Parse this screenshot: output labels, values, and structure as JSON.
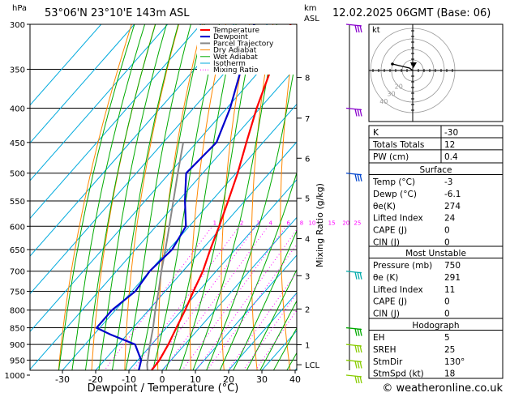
{
  "header": {
    "hpa_label": "hPa",
    "location": "53°06'N  23°10'E  143m  ASL",
    "km_label": "km",
    "asl_label": "ASL",
    "datetime": "12.02.2025  06GMT  (Base: 06)"
  },
  "chart_data": {
    "type": "skew-t",
    "xlabel": "Dewpoint / Temperature (°C)",
    "ylabel_right": "Mixing Ratio (g/kg)",
    "x_ticks": [
      -30,
      -20,
      -10,
      0,
      10,
      20,
      30,
      40
    ],
    "pressure_ticks": [
      300,
      350,
      400,
      450,
      500,
      550,
      600,
      650,
      700,
      750,
      800,
      850,
      900,
      950,
      1000
    ],
    "km_ticks": [
      {
        "label": "8",
        "p": 360
      },
      {
        "label": "7",
        "p": 414
      },
      {
        "label": "6",
        "p": 475
      },
      {
        "label": "5",
        "p": 545
      },
      {
        "label": "4",
        "p": 626
      },
      {
        "label": "3",
        "p": 711
      },
      {
        "label": "2",
        "p": 797
      },
      {
        "label": "1",
        "p": 901
      },
      {
        "label": "LCL",
        "p": 965
      }
    ],
    "mixing_ratio_labels": [
      "1",
      "2",
      "3",
      "4",
      "6",
      "8",
      "10",
      "15",
      "20",
      "25"
    ],
    "mixing_ratio_values": [
      1,
      2,
      3,
      4,
      6,
      8,
      10,
      15,
      20,
      25
    ],
    "legend": [
      "Temperature",
      "Dewpoint",
      "Parcel Trajectory",
      "Dry Adiabat",
      "Wet Adiabat",
      "Isotherm",
      "Mixing Ratio"
    ],
    "legend_colors": [
      "#ff0000",
      "#0000cc",
      "#888888",
      "#ff8800",
      "#00aa00",
      "#00aadd",
      "#ff00ff"
    ],
    "temperature": [
      {
        "p": 1000,
        "t": -3
      },
      {
        "p": 950,
        "t": -3.5
      },
      {
        "p": 900,
        "t": -5
      },
      {
        "p": 850,
        "t": -7
      },
      {
        "p": 800,
        "t": -9
      },
      {
        "p": 750,
        "t": -11.5
      },
      {
        "p": 700,
        "t": -14
      },
      {
        "p": 650,
        "t": -17.5
      },
      {
        "p": 600,
        "t": -21
      },
      {
        "p": 550,
        "t": -25
      },
      {
        "p": 500,
        "t": -29.5
      },
      {
        "p": 450,
        "t": -35
      },
      {
        "p": 400,
        "t": -41
      },
      {
        "p": 350,
        "t": -47
      },
      {
        "p": 300,
        "t": -53
      }
    ],
    "dewpoint": [
      {
        "p": 1000,
        "t": -6.1
      },
      {
        "p": 950,
        "t": -9
      },
      {
        "p": 900,
        "t": -15
      },
      {
        "p": 870,
        "t": -25
      },
      {
        "p": 850,
        "t": -31
      },
      {
        "p": 800,
        "t": -31
      },
      {
        "p": 750,
        "t": -29
      },
      {
        "p": 700,
        "t": -30
      },
      {
        "p": 650,
        "t": -29
      },
      {
        "p": 600,
        "t": -31
      },
      {
        "p": 550,
        "t": -38
      },
      {
        "p": 500,
        "t": -45
      },
      {
        "p": 450,
        "t": -44
      },
      {
        "p": 400,
        "t": -49
      },
      {
        "p": 350,
        "t": -56
      },
      {
        "p": 300,
        "t": -64
      }
    ],
    "parcel": [
      {
        "p": 1000,
        "t": -3
      },
      {
        "p": 965,
        "t": -6
      },
      {
        "p": 900,
        "t": -10.5
      },
      {
        "p": 850,
        "t": -14
      },
      {
        "p": 800,
        "t": -18
      },
      {
        "p": 750,
        "t": -22
      },
      {
        "p": 700,
        "t": -26.5
      },
      {
        "p": 650,
        "t": -31
      },
      {
        "p": 600,
        "t": -36
      },
      {
        "p": 550,
        "t": -41.5
      },
      {
        "p": 500,
        "t": -47.5
      },
      {
        "p": 450,
        "t": -54
      }
    ]
  },
  "indices": {
    "k": {
      "label": "K",
      "value": "-30"
    },
    "tt": {
      "label": "Totals Totals",
      "value": "12"
    },
    "pw": {
      "label": "PW (cm)",
      "value": "0.4"
    }
  },
  "surface": {
    "title": "Surface",
    "rows": [
      {
        "label": "Temp (°C)",
        "value": "-3"
      },
      {
        "label": "Dewp (°C)",
        "value": "-6.1"
      },
      {
        "label": "θe(K)",
        "value": "274"
      },
      {
        "label": "Lifted Index",
        "value": "24"
      },
      {
        "label": "CAPE (J)",
        "value": "0"
      },
      {
        "label": "CIN (J)",
        "value": "0"
      }
    ]
  },
  "unstable": {
    "title": "Most Unstable",
    "rows": [
      {
        "label": "Pressure (mb)",
        "value": "750"
      },
      {
        "label": "θe (K)",
        "value": "291"
      },
      {
        "label": "Lifted Index",
        "value": "11"
      },
      {
        "label": "CAPE (J)",
        "value": "0"
      },
      {
        "label": "CIN (J)",
        "value": "0"
      }
    ]
  },
  "hodograph": {
    "title": "Hodograph",
    "kt_label": "kt",
    "ring_labels": [
      "20",
      "30",
      "40"
    ],
    "rows": [
      {
        "label": "EH",
        "value": "5"
      },
      {
        "label": "SREH",
        "value": "25"
      },
      {
        "label": "StmDir",
        "value": "130°"
      },
      {
        "label": "StmSpd (kt)",
        "value": "18"
      }
    ]
  },
  "wind_barb_levels": [
    300,
    400,
    500,
    700,
    850,
    900,
    950,
    1000
  ],
  "wind_barb_colors": [
    "#8800cc",
    "#8800cc",
    "#0044cc",
    "#00aaaa",
    "#00aa00",
    "#88cc00",
    "#88cc00",
    "#88cc00"
  ],
  "footer": "© weatheronline.co.uk"
}
